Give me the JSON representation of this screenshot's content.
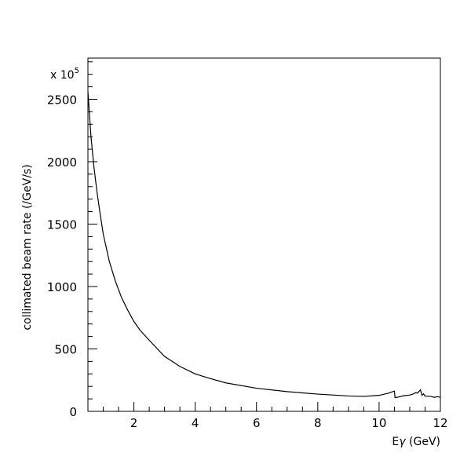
{
  "chart_data": {
    "type": "line",
    "title": "",
    "xlabel_main": "E",
    "xlabel_symbol": "γ",
    "xlabel_unit": " (GeV)",
    "ylabel": "collimated beam rate (/GeV/s)",
    "y_multiplier_prefix": "x 10",
    "y_multiplier_exponent": "5",
    "xlim": [
      0.5,
      12
    ],
    "ylim": [
      0,
      2830
    ],
    "x_ticks": [
      "2",
      "4",
      "6",
      "8",
      "10",
      "12"
    ],
    "y_ticks": [
      "0",
      "500",
      "1000",
      "1500",
      "2000",
      "2500"
    ],
    "grid": false,
    "series": [
      {
        "x": [
          0.5,
          0.55,
          0.6,
          0.7,
          0.8,
          0.9,
          1.0,
          1.2,
          1.4,
          1.6,
          1.8,
          2.0,
          2.2,
          2.5,
          3.0,
          3.5,
          4.0,
          4.5,
          5.0,
          6.0,
          7.0,
          8.0,
          9.0,
          9.5,
          10.0,
          10.3,
          10.5,
          10.52,
          10.6,
          10.8,
          11.0,
          11.1,
          11.2,
          11.25,
          11.3,
          11.35,
          11.4,
          11.45,
          11.5,
          11.7,
          11.8,
          11.9,
          12.0
        ],
        "y": [
          2560,
          2380,
          2200,
          1950,
          1750,
          1580,
          1420,
          1200,
          1040,
          910,
          810,
          720,
          650,
          570,
          440,
          360,
          300,
          262,
          228,
          185,
          158,
          138,
          123,
          120,
          128,
          145,
          162,
          110,
          113,
          125,
          130,
          138,
          150,
          145,
          160,
          172,
          128,
          140,
          122,
          120,
          112,
          118,
          112
        ]
      }
    ]
  }
}
